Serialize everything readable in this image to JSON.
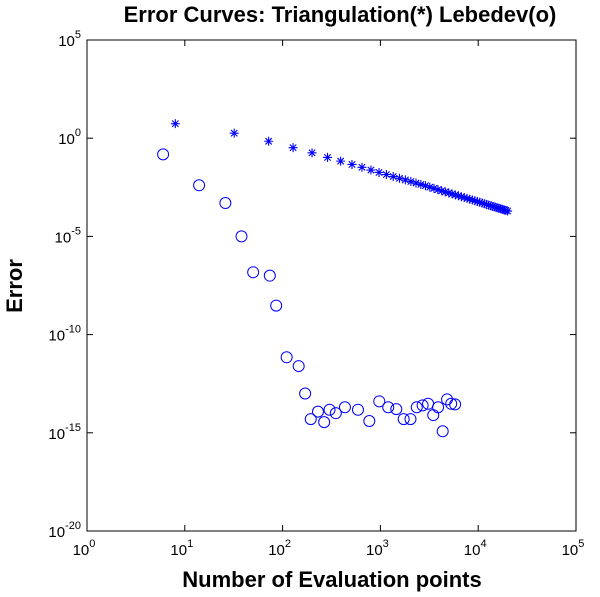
{
  "chart_data": {
    "type": "scatter",
    "title": "Error Curves: Triangulation(*) Lebedev(o)",
    "xlabel": "Number of Evaluation points",
    "ylabel": "Error",
    "xscale": "log",
    "yscale": "log",
    "xlim": [
      1,
      100000
    ],
    "ylim": [
      1e-20,
      100000
    ],
    "x_ticks": [
      {
        "base": "10",
        "exp": "0"
      },
      {
        "base": "10",
        "exp": "1"
      },
      {
        "base": "10",
        "exp": "2"
      },
      {
        "base": "10",
        "exp": "3"
      },
      {
        "base": "10",
        "exp": "4"
      },
      {
        "base": "10",
        "exp": "5"
      }
    ],
    "y_ticks": [
      {
        "base": "10",
        "exp": "-20"
      },
      {
        "base": "10",
        "exp": "-15"
      },
      {
        "base": "10",
        "exp": "-10"
      },
      {
        "base": "10",
        "exp": "-5"
      },
      {
        "base": "10",
        "exp": "0"
      },
      {
        "base": "10",
        "exp": "5"
      }
    ],
    "color": "#0000ff",
    "series": [
      {
        "name": "Triangulation",
        "marker": "asterisk",
        "x": [
          8,
          32,
          72,
          128,
          200,
          288,
          392,
          512,
          648,
          800,
          968,
          1152,
          1352,
          1568,
          1800,
          2048,
          2312,
          2592,
          2888,
          3200,
          3528,
          3872,
          4232,
          4608,
          5000,
          5408,
          5832,
          6272,
          6728,
          7200,
          7688,
          8192,
          8712,
          9248,
          9800,
          10368,
          10952,
          11552,
          12168,
          12800,
          13448,
          14112,
          14792,
          15488,
          16200,
          16928,
          17672,
          18432,
          19208,
          20000
        ],
        "y": [
          5.5,
          1.8,
          0.7,
          0.33,
          0.18,
          0.105,
          0.068,
          0.046,
          0.033,
          0.024,
          0.018,
          0.0141,
          0.0112,
          0.0091,
          0.0075,
          0.0062,
          0.0052,
          0.0044,
          0.0038,
          0.0032,
          0.0028,
          0.0024,
          0.0021,
          0.00185,
          0.00164,
          0.00146,
          0.0013,
          0.00117,
          0.00105,
          0.00095,
          0.00086,
          0.00078,
          0.000715,
          0.00065,
          0.000595,
          0.000545,
          0.0005,
          0.00046,
          0.000425,
          0.000393,
          0.000364,
          0.000338,
          0.000314,
          0.000292,
          0.000272,
          0.000254,
          0.000238,
          0.000223,
          0.000209,
          0.000196
        ]
      },
      {
        "name": "Lebedev",
        "marker": "circle",
        "x": [
          6,
          14,
          26,
          38,
          50,
          74,
          86,
          110,
          146,
          170,
          194,
          230,
          266,
          302,
          350,
          434,
          590,
          770,
          974,
          1202,
          1454,
          1730,
          2030,
          2354,
          2702,
          3074,
          3470,
          3890,
          4334,
          4802,
          5294,
          5810
        ],
        "y": [
          0.15,
          0.004,
          0.0005,
          1e-05,
          1.5e-07,
          1e-07,
          3e-09,
          7e-12,
          2.5e-12,
          1e-13,
          5e-15,
          1.2e-14,
          3.5e-15,
          1.5e-14,
          1e-14,
          2e-14,
          1.5e-14,
          4e-15,
          4e-14,
          2e-14,
          1.6e-14,
          5e-15,
          5e-15,
          2e-14,
          2.5e-14,
          3e-14,
          8e-15,
          2e-14,
          1.2e-15,
          5e-14,
          3e-14,
          2.8e-14
        ]
      }
    ]
  }
}
